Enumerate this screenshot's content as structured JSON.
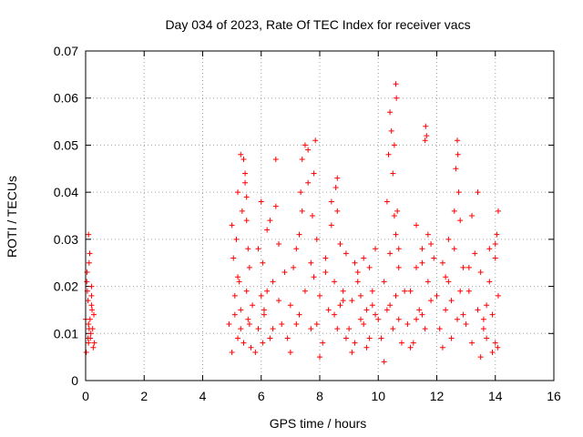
{
  "chart_data": {
    "type": "scatter",
    "title": "Day 034 of 2023, Rate Of TEC Index for receiver vacs",
    "xlabel": "GPS time / hours",
    "ylabel": "ROTI / TECUs",
    "xlim": [
      0,
      16
    ],
    "ylim": [
      0,
      0.07
    ],
    "x_ticks": [
      "0",
      "2",
      "4",
      "6",
      "8",
      "10",
      "12",
      "14",
      "16"
    ],
    "y_ticks": [
      "0",
      "0.01",
      "0.02",
      "0.03",
      "0.04",
      "0.05",
      "0.06",
      "0.07"
    ],
    "grid": true,
    "marker": "+",
    "series_color": "#ff0000",
    "series": [
      {
        "x": [
          0.0,
          0.04,
          0.08,
          0.1,
          0.12,
          0.16,
          0.2,
          0.24,
          0.28,
          0.3,
          0.02,
          0.06,
          0.1,
          0.14,
          0.18,
          0.22,
          0.26,
          0.05,
          0.1,
          0.15,
          0.2,
          0.12,
          0.08,
          0.2,
          4.9,
          5.0,
          5.05,
          5.1,
          5.15,
          5.2,
          5.25,
          5.3,
          5.35,
          5.4,
          5.45,
          5.5,
          5.55,
          5.6,
          5.65,
          5.7,
          5.0,
          5.1,
          5.2,
          5.3,
          5.4,
          5.5,
          5.6,
          5.2,
          5.3,
          5.45,
          5.5,
          5.55,
          5.8,
          5.9,
          6.0,
          6.05,
          6.1,
          6.2,
          6.3,
          6.4,
          6.5,
          6.6,
          6.7,
          6.8,
          5.9,
          6.0,
          6.1,
          6.3,
          6.5,
          6.6,
          6.05,
          6.2,
          6.4,
          6.9,
          7.0,
          7.1,
          7.2,
          7.3,
          7.4,
          7.5,
          7.6,
          7.7,
          7.8,
          7.0,
          7.2,
          7.4,
          7.5,
          7.6,
          7.3,
          7.35,
          7.7,
          7.75,
          7.8,
          7.85,
          7.9,
          7.9,
          8.0,
          8.1,
          8.2,
          8.3,
          8.4,
          8.5,
          8.6,
          8.7,
          8.8,
          8.9,
          8.0,
          8.2,
          8.4,
          8.6,
          8.8,
          8.5,
          8.6,
          8.55,
          8.9,
          8.7,
          9.0,
          9.1,
          9.2,
          9.3,
          9.4,
          9.5,
          9.6,
          9.7,
          9.8,
          9.9,
          9.1,
          9.3,
          9.5,
          9.7,
          9.9,
          9.4,
          9.6,
          9.2,
          9.8,
          10.0,
          10.1,
          10.2,
          10.3,
          10.4,
          10.5,
          10.6,
          10.7,
          10.8,
          10.9,
          10.2,
          10.3,
          10.35,
          10.4,
          10.45,
          10.5,
          10.55,
          10.6,
          10.62,
          10.65,
          10.7,
          10.4,
          10.6,
          10.7,
          10.55,
          11.0,
          11.1,
          11.2,
          11.3,
          11.4,
          11.5,
          11.6,
          11.7,
          11.8,
          11.9,
          11.1,
          11.3,
          11.5,
          11.6,
          11.62,
          11.65,
          11.7,
          11.5,
          11.8,
          11.3,
          12.0,
          12.1,
          12.2,
          12.3,
          12.4,
          12.5,
          12.6,
          12.7,
          12.8,
          12.9,
          12.2,
          12.4,
          12.6,
          12.65,
          12.7,
          12.72,
          12.75,
          12.8,
          12.9,
          12.5,
          12.3,
          13.0,
          13.1,
          13.2,
          13.3,
          13.4,
          13.5,
          13.6,
          13.7,
          13.8,
          13.9,
          14.0,
          14.05,
          14.1,
          13.2,
          13.4,
          13.6,
          13.8,
          14.0,
          14.1,
          13.7,
          14.0,
          14.08,
          13.1,
          13.5,
          13.9
        ],
        "y": [
          0.013,
          0.021,
          0.017,
          0.012,
          0.025,
          0.009,
          0.016,
          0.011,
          0.014,
          0.008,
          0.006,
          0.019,
          0.031,
          0.027,
          0.01,
          0.015,
          0.007,
          0.023,
          0.008,
          0.013,
          0.018,
          0.011,
          0.009,
          0.02,
          0.012,
          0.033,
          0.026,
          0.018,
          0.03,
          0.009,
          0.021,
          0.015,
          0.036,
          0.047,
          0.044,
          0.039,
          0.028,
          0.012,
          0.007,
          0.016,
          0.006,
          0.014,
          0.022,
          0.011,
          0.008,
          0.019,
          0.024,
          0.04,
          0.048,
          0.042,
          0.034,
          0.013,
          0.006,
          0.011,
          0.018,
          0.025,
          0.014,
          0.032,
          0.009,
          0.021,
          0.037,
          0.017,
          0.012,
          0.023,
          0.028,
          0.038,
          0.015,
          0.034,
          0.047,
          0.029,
          0.008,
          0.019,
          0.011,
          0.009,
          0.016,
          0.024,
          0.012,
          0.031,
          0.047,
          0.019,
          0.042,
          0.011,
          0.022,
          0.006,
          0.028,
          0.036,
          0.05,
          0.049,
          0.014,
          0.04,
          0.025,
          0.035,
          0.044,
          0.051,
          0.03,
          0.012,
          0.018,
          0.008,
          0.026,
          0.015,
          0.033,
          0.021,
          0.011,
          0.029,
          0.017,
          0.009,
          0.005,
          0.023,
          0.038,
          0.043,
          0.019,
          0.014,
          0.036,
          0.041,
          0.027,
          0.016,
          0.011,
          0.017,
          0.008,
          0.021,
          0.013,
          0.026,
          0.015,
          0.009,
          0.019,
          0.028,
          0.006,
          0.023,
          0.012,
          0.024,
          0.014,
          0.018,
          0.007,
          0.025,
          0.016,
          0.013,
          0.009,
          0.021,
          0.015,
          0.027,
          0.011,
          0.018,
          0.024,
          0.008,
          0.019,
          0.004,
          0.038,
          0.048,
          0.057,
          0.053,
          0.044,
          0.05,
          0.063,
          0.06,
          0.036,
          0.028,
          0.016,
          0.031,
          0.013,
          0.035,
          0.012,
          0.019,
          0.008,
          0.024,
          0.015,
          0.028,
          0.011,
          0.021,
          0.017,
          0.026,
          0.007,
          0.033,
          0.025,
          0.051,
          0.054,
          0.052,
          0.031,
          0.014,
          0.029,
          0.013,
          0.018,
          0.011,
          0.025,
          0.015,
          0.021,
          0.009,
          0.028,
          0.013,
          0.019,
          0.024,
          0.007,
          0.03,
          0.036,
          0.045,
          0.051,
          0.048,
          0.04,
          0.034,
          0.014,
          0.017,
          0.022,
          0.012,
          0.019,
          0.008,
          0.027,
          0.015,
          0.023,
          0.011,
          0.009,
          0.021,
          0.014,
          0.026,
          0.031,
          0.018,
          0.035,
          0.04,
          0.013,
          0.028,
          0.029,
          0.036,
          0.016,
          0.008,
          0.007,
          0.024,
          0.005,
          0.006
        ]
      }
    ]
  }
}
